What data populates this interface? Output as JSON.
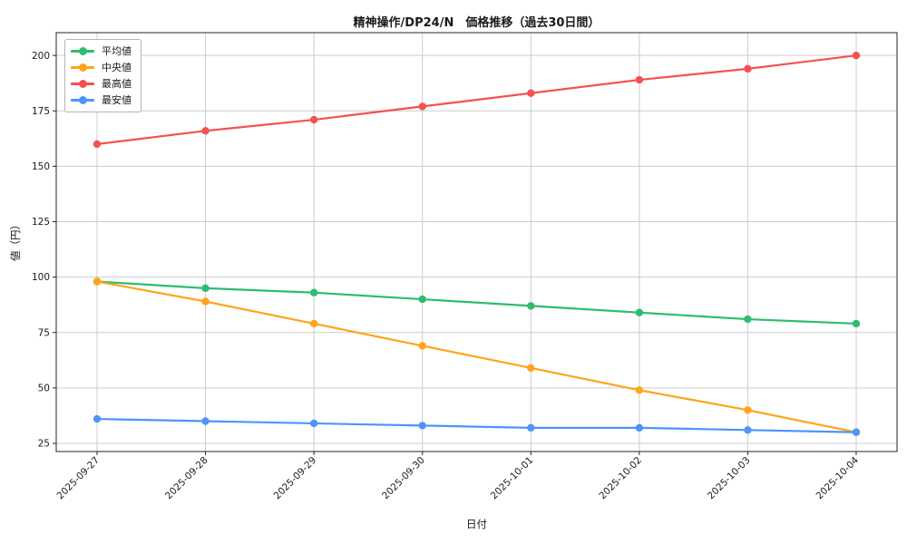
{
  "chart_data": {
    "type": "line",
    "title": "精神操作/DP24/N　価格推移（過去30日間）",
    "xlabel": "日付",
    "ylabel": "値（円）",
    "categories": [
      "2025-09-27",
      "2025-09-28",
      "2025-09-29",
      "2025-09-30",
      "2025-10-01",
      "2025-10-02",
      "2025-10-03",
      "2025-10-04"
    ],
    "series": [
      {
        "key": "avg",
        "name": "平均値",
        "color": "#2dbd6e",
        "values": [
          98,
          95,
          93,
          90,
          87,
          84,
          81,
          79
        ]
      },
      {
        "key": "median",
        "name": "中央値",
        "color": "#ffa41b",
        "values": [
          98,
          89,
          79,
          69,
          59,
          49,
          40,
          30
        ]
      },
      {
        "key": "max",
        "name": "最高値",
        "color": "#f4514f",
        "values": [
          160,
          166,
          171,
          177,
          183,
          189,
          194,
          200
        ]
      },
      {
        "key": "min",
        "name": "最安値",
        "color": "#4e95f7",
        "values": [
          36,
          35,
          34,
          33,
          32,
          32,
          31,
          30
        ]
      }
    ],
    "yticks": [
      25,
      50,
      75,
      100,
      125,
      150,
      175,
      200
    ],
    "ylim": [
      21.3,
      210.3
    ],
    "grid": true,
    "legend_position": "upper left",
    "marker": "circle",
    "colors": {
      "background": "#ffffff",
      "grid": "#cccccc",
      "axis": "#262626",
      "text": "#1a1a1a"
    }
  }
}
